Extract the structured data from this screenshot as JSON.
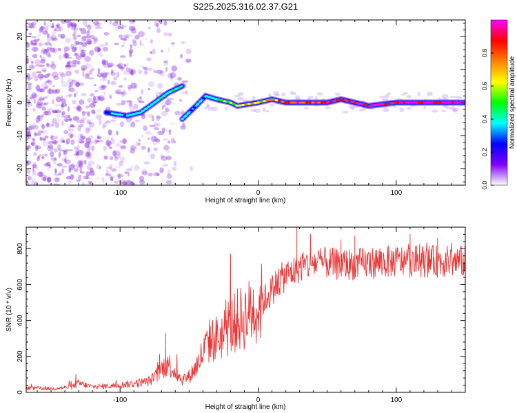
{
  "title": "S225.2025.316.02.37.G21",
  "chart_data": [
    {
      "type": "heatmap",
      "name": "spectrogram",
      "xlabel": "Height of straight line (km)",
      "ylabel": "Frequency (Hz)",
      "xlim": [
        -168,
        150
      ],
      "ylim": [
        -25,
        25
      ],
      "xticks": [
        -100,
        0,
        100
      ],
      "xtick_labels": [
        "-100",
        "0",
        "100"
      ],
      "yticks": [
        20,
        10,
        0,
        -10,
        -20
      ],
      "ytick_labels": [
        "20",
        "10",
        "0",
        "-10",
        "-20"
      ],
      "trace": {
        "lower_branch": [
          [
            -110,
            -3
          ],
          [
            -95,
            -4
          ],
          [
            -85,
            -3
          ],
          [
            -75,
            0
          ],
          [
            -65,
            3
          ],
          [
            -55,
            5
          ]
        ],
        "upper_branch": [
          [
            -55,
            -5
          ],
          [
            -45,
            -1
          ],
          [
            -38,
            2
          ],
          [
            -30,
            1
          ],
          [
            -20,
            0
          ],
          [
            -15,
            -1
          ],
          [
            0,
            0
          ],
          [
            10,
            1
          ],
          [
            20,
            0
          ],
          [
            50,
            0
          ],
          [
            60,
            1
          ],
          [
            80,
            -1
          ],
          [
            100,
            0
          ],
          [
            150,
            0
          ]
        ]
      },
      "colorbar": {
        "label": "Normalized spectral amplitude",
        "range": [
          0.0,
          1.0
        ],
        "ticks": [
          0.0,
          0.2,
          0.4,
          0.6,
          0.8
        ],
        "tick_labels": [
          "0.0",
          "0.2",
          "0.4",
          "0.6",
          "0.8"
        ],
        "colors": [
          "#ffffff",
          "#7f00ff",
          "#0000ff",
          "#00ffff",
          "#00ff00",
          "#ffff00",
          "#ff8000",
          "#ff0000",
          "#ff00ff"
        ]
      }
    },
    {
      "type": "line",
      "name": "snr",
      "xlabel": "Height of straight line (km)",
      "ylabel": "SNR (10 * v/v)",
      "xlim": [
        -168,
        150
      ],
      "ylim": [
        0,
        920
      ],
      "xticks": [
        -100,
        0,
        100
      ],
      "xtick_labels": [
        "-100",
        "0",
        "100"
      ],
      "yticks": [
        0,
        200,
        400,
        600,
        800
      ],
      "ytick_labels": [
        "0",
        "200",
        "400",
        "600",
        "800"
      ],
      "color": "#ee3333",
      "series": [
        {
          "name": "SNR envelope",
          "x": [
            -168,
            -150,
            -135,
            -130,
            -120,
            -100,
            -90,
            -80,
            -75,
            -70,
            -65,
            -60,
            -55,
            -50,
            -45,
            -40,
            -35,
            -30,
            -25,
            -20,
            -15,
            -10,
            -5,
            0,
            5,
            10,
            15,
            20,
            25,
            30,
            40,
            50,
            60,
            80,
            100,
            120,
            150
          ],
          "values": [
            25,
            20,
            30,
            50,
            30,
            40,
            50,
            60,
            80,
            130,
            160,
            110,
            70,
            90,
            140,
            220,
            290,
            300,
            330,
            370,
            400,
            420,
            450,
            480,
            520,
            570,
            620,
            650,
            670,
            700,
            720,
            720,
            710,
            720,
            730,
            730,
            730
          ],
          "spikes": [
            [
              -132,
              100
            ],
            [
              -67,
              330
            ],
            [
              -36,
              310
            ],
            [
              -20,
              770
            ],
            [
              -3,
              470
            ],
            [
              28,
              920
            ],
            [
              38,
              880
            ],
            [
              60,
              850
            ],
            [
              70,
              870
            ],
            [
              110,
              880
            ],
            [
              130,
              860
            ]
          ]
        }
      ]
    }
  ]
}
